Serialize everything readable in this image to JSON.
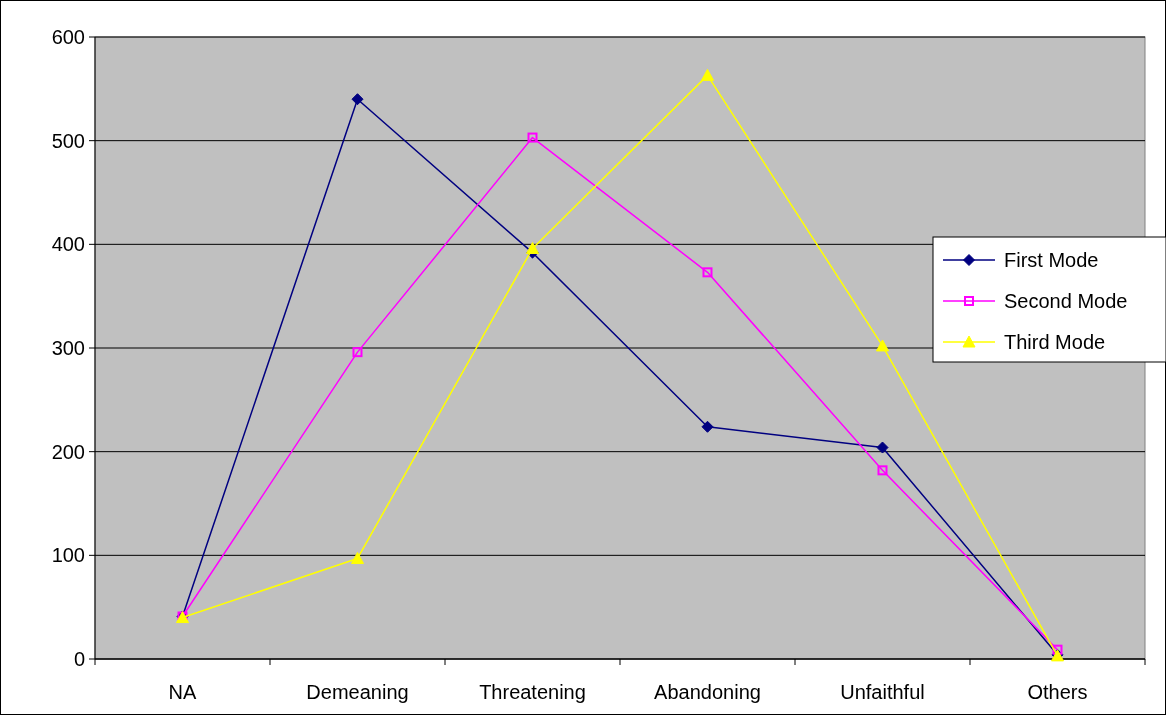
{
  "chart_data": {
    "type": "line",
    "categories": [
      "NA",
      "Demeaning",
      "Threatening",
      "Abandoning",
      "Unfaithful",
      "Others"
    ],
    "series": [
      {
        "name": "First Mode",
        "color": "#000080",
        "marker": "diamond",
        "values": [
          41,
          540,
          392,
          224,
          204,
          4
        ]
      },
      {
        "name": "Second Mode",
        "color": "#ff00ff",
        "marker": "square",
        "values": [
          41,
          296,
          503,
          373,
          182,
          9
        ]
      },
      {
        "name": "Third Mode",
        "color": "#ffff00",
        "marker": "triangle",
        "values": [
          40,
          97,
          396,
          563,
          302,
          3
        ]
      }
    ],
    "ylim": [
      0,
      600
    ],
    "yticks": [
      0,
      100,
      200,
      300,
      400,
      500,
      600
    ],
    "grid": "y",
    "legend": "right"
  }
}
